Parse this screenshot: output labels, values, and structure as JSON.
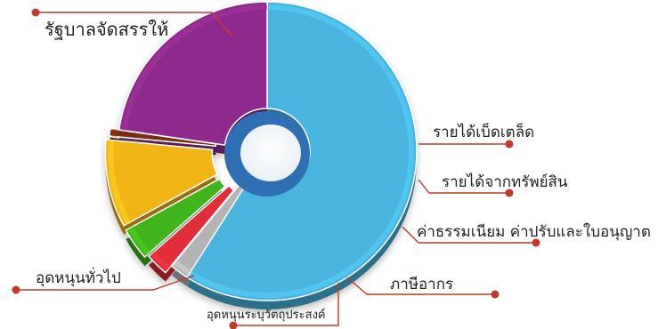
{
  "chart_data": {
    "type": "pie",
    "style": "3d-donut",
    "slices": [
      {
        "label": "รัฐบาลจัดสรรให้",
        "value": 59.0,
        "color": "#48b4dd"
      },
      {
        "label": "รายได้เบ็ดเตล็ด",
        "value": 2.0,
        "color": "#b4b4b4"
      },
      {
        "label": "รายได้จากทรัพย์สิน",
        "value": 2.5,
        "color": "#e02d3a"
      },
      {
        "label": "ค่าธรรมเนียม ค่าปรับและใบอนุญาต",
        "value": 3.5,
        "color": "#3fb61c"
      },
      {
        "label": "ภาษีอากร",
        "value": 9.5,
        "color": "#f2b517"
      },
      {
        "label": "อุดหนุนระบุวัตถุประสงค์",
        "value": 0.8,
        "color": "#7a2e10"
      },
      {
        "label": "อุดหนุนทั่วไป",
        "value": 22.7,
        "color": "#8e2a8b"
      }
    ],
    "title": "",
    "legend": "callout-labels"
  },
  "colors": {
    "callout_line": "#c0392b",
    "callout_dot": "#c0392b",
    "label_text": "#222222",
    "inner_hole": "#2f6fb3"
  }
}
